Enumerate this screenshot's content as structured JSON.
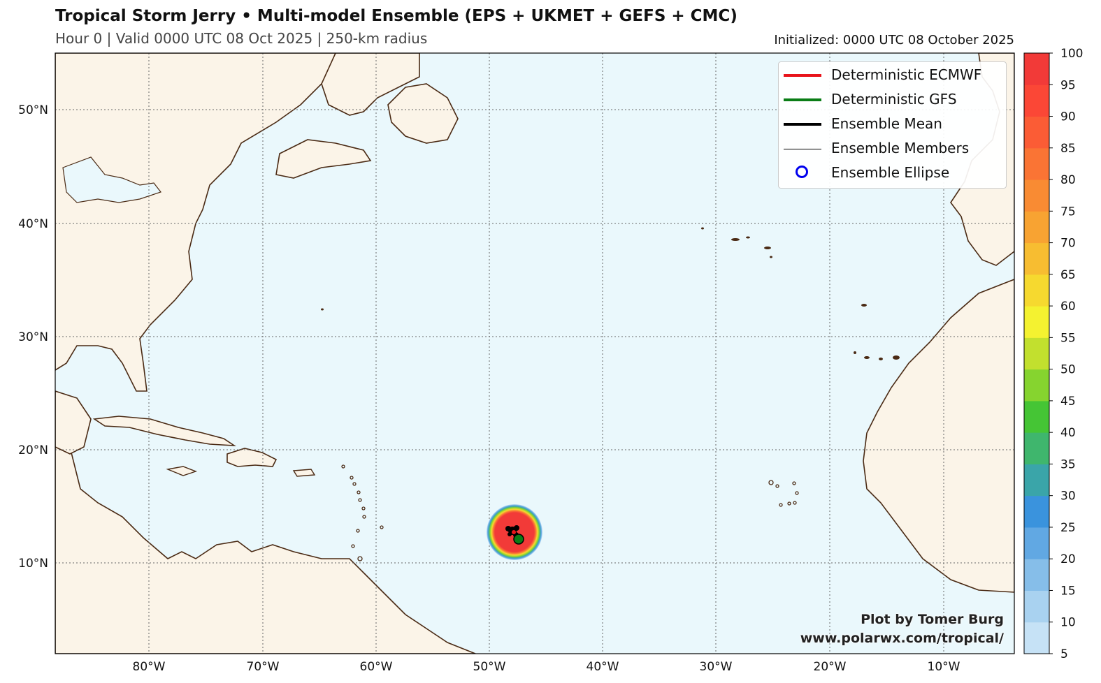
{
  "header": {
    "title": "Tropical Storm Jerry • Multi-model Ensemble (EPS + UKMET + GEFS + CMC)",
    "subtitle": "Hour 0 | Valid 0000 UTC 08 Oct 2025 | 250-km radius",
    "initialized": "Initialized: 0000 UTC 08 October 2025"
  },
  "legend": {
    "items": [
      {
        "label": "Deterministic ECMWF",
        "color": "#e8141b",
        "style": "thick-line"
      },
      {
        "label": "Deterministic GFS",
        "color": "#0a7d16",
        "style": "thick-line"
      },
      {
        "label": "Ensemble Mean",
        "color": "#000000",
        "style": "thick-line"
      },
      {
        "label": "Ensemble Members",
        "color": "#000000",
        "style": "thin-line"
      },
      {
        "label": "Ensemble Ellipse",
        "color": "#0000ee",
        "style": "circle"
      }
    ]
  },
  "axes": {
    "lat_labels": [
      "50°N",
      "40°N",
      "30°N",
      "20°N",
      "10°N"
    ],
    "lon_labels": [
      "80°W",
      "70°W",
      "60°W",
      "50°W",
      "40°W",
      "30°W",
      "20°W",
      "10°W"
    ]
  },
  "colorbar": {
    "ticks": [
      "100",
      "95",
      "90",
      "85",
      "80",
      "75",
      "70",
      "65",
      "60",
      "55",
      "50",
      "45",
      "40",
      "35",
      "30",
      "25",
      "20",
      "15",
      "10",
      "5"
    ],
    "colors": [
      "#c6e2f6",
      "#a9d2f0",
      "#86bee9",
      "#61a8e3",
      "#3a93dd",
      "#3aa5a9",
      "#3fb66d",
      "#45c535",
      "#86d42f",
      "#c2e02e",
      "#f4f230",
      "#f6d92f",
      "#f7bd31",
      "#f8a332",
      "#f98b33",
      "#fa7434",
      "#fb5c35",
      "#fb4736",
      "#f23a38"
    ]
  },
  "storm": {
    "name": "Tropical Storm Jerry",
    "center": {
      "lat": 12.6,
      "lon": -47.8
    },
    "gfs_point": {
      "lat": 12.0,
      "lon": -47.5
    }
  },
  "map": {
    "ocean_color": "#eaf8fc",
    "land_color": "#fbf4e8",
    "coast_color": "#4a2a14"
  },
  "credit": {
    "line1": "Plot by Tomer Burg",
    "line2": "www.polarwx.com/tropical/"
  }
}
